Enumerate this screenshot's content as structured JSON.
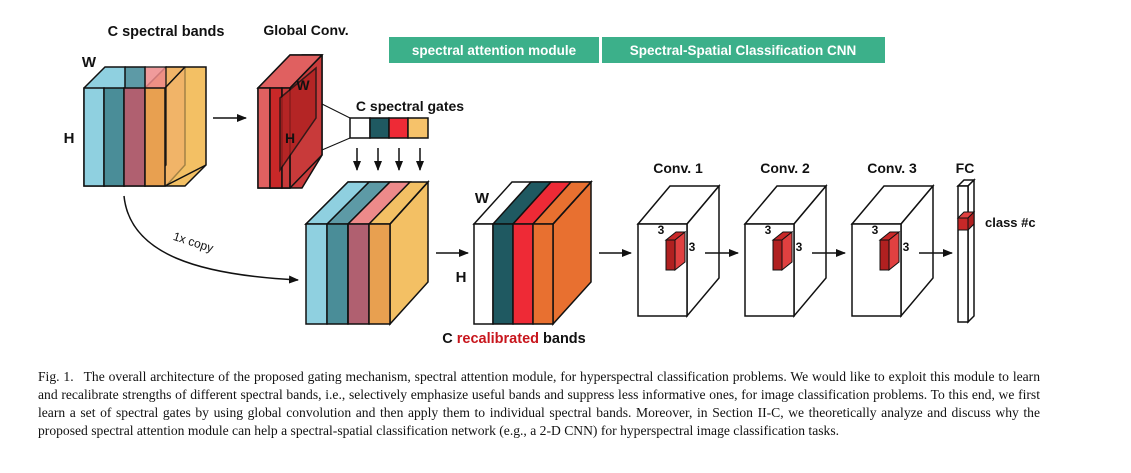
{
  "header": {
    "spectral_attention": "spectral attention module",
    "classification_cnn": "Spectral-Spatial Classification CNN",
    "accent_color": "#3cb08a"
  },
  "input_block": {
    "title": "C spectral bands",
    "width_label": "W",
    "height_label": "H"
  },
  "global_conv": {
    "title": "Global Conv.",
    "width_label": "W",
    "height_label": "H"
  },
  "gates": {
    "title": "C spectral gates"
  },
  "copy_arrow": {
    "label": "1x copy"
  },
  "recalibrated": {
    "width_label": "W",
    "height_label": "H",
    "caption_prefix": "C",
    "caption_highlight": "recalibrated",
    "caption_suffix": "bands"
  },
  "cnn": {
    "conv1": "Conv. 1",
    "conv2": "Conv. 2",
    "conv3": "Conv. 3",
    "fc": "FC",
    "kernel_label": "3",
    "output": "class #c"
  },
  "caption": {
    "fig": "Fig. 1.",
    "text": "The overall architecture of the proposed gating mechanism, spectral attention module, for hyperspectral classification problems. We would like to exploit this module to learn and recalibrate strengths of different spectral bands, i.e., selectively emphasize useful bands and suppress less informative ones, for image classification problems. To this end, we first learn a set of spectral gates by using global convolution and then apply them to individual spectral bands. Moreover, in Section II-C, we theoretically analyze and discuss why the proposed spectral attention module can help a spectral-spatial classification network (e.g., a 2-D CNN) for hyperspectral image classification tasks."
  }
}
